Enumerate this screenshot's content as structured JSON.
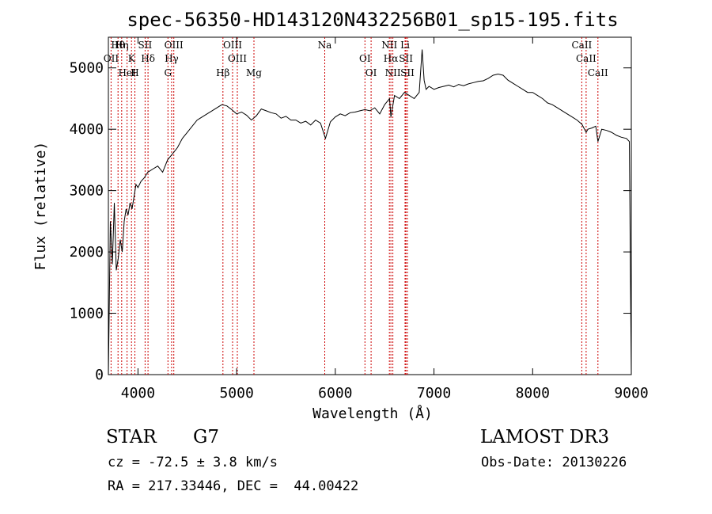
{
  "title": "spec-56350-HD143120N432256B01_sp15-195.fits",
  "footer": {
    "class_label": "STAR",
    "subclass_label": "G7",
    "survey": "LAMOST DR3",
    "cz": "cz = -72.5 ± 3.8 km/s",
    "obs_date": "Obs-Date: 20130226",
    "coords": "RA = 217.33446, DEC =  44.00422"
  },
  "chart_data": {
    "type": "line",
    "title": "spec-56350-HD143120N432256B01_sp15-195.fits",
    "xlabel": "Wavelength (Å)",
    "ylabel": "Flux (relative)",
    "xlim": [
      3700,
      9000
    ],
    "ylim": [
      0,
      5500
    ],
    "xticks": [
      4000,
      5000,
      6000,
      7000,
      8000,
      9000
    ],
    "yticks": [
      0,
      1000,
      2000,
      3000,
      4000,
      5000
    ],
    "grid": false,
    "line_color": "#000000",
    "marker_color": "#cc0000",
    "series": [
      {
        "x": [
          3700,
          3720,
          3740,
          3760,
          3780,
          3800,
          3820,
          3840,
          3860,
          3880,
          3900,
          3920,
          3940,
          3960,
          3980,
          4000,
          4030,
          4060,
          4100,
          4150,
          4200,
          4250,
          4300,
          4350,
          4400,
          4450,
          4500,
          4550,
          4600,
          4650,
          4700,
          4750,
          4800,
          4850,
          4900,
          4950,
          5000,
          5050,
          5100,
          5150,
          5200,
          5250,
          5300,
          5350,
          5400,
          5450,
          5500,
          5550,
          5600,
          5650,
          5700,
          5750,
          5800,
          5850,
          5900,
          5950,
          6000,
          6050,
          6100,
          6150,
          6200,
          6250,
          6300,
          6350,
          6400,
          6450,
          6500,
          6550,
          6563,
          6600,
          6650,
          6700,
          6750,
          6800,
          6850,
          6880,
          6900,
          6920,
          6950,
          7000,
          7050,
          7100,
          7150,
          7200,
          7250,
          7300,
          7350,
          7400,
          7450,
          7500,
          7550,
          7600,
          7650,
          7700,
          7750,
          7800,
          7850,
          7900,
          7950,
          8000,
          8050,
          8100,
          8150,
          8200,
          8250,
          8300,
          8350,
          8400,
          8450,
          8500,
          8542,
          8560,
          8600,
          8640,
          8662,
          8700,
          8750,
          8800,
          8850,
          8900,
          8950,
          8980,
          9000
        ],
        "y": [
          0,
          2500,
          1800,
          2800,
          1700,
          1900,
          2200,
          2000,
          2500,
          2700,
          2600,
          2800,
          2700,
          2900,
          3100,
          3050,
          3150,
          3200,
          3300,
          3350,
          3400,
          3300,
          3500,
          3600,
          3700,
          3850,
          3950,
          4050,
          4150,
          4200,
          4250,
          4300,
          4350,
          4400,
          4380,
          4320,
          4250,
          4280,
          4230,
          4150,
          4220,
          4330,
          4300,
          4270,
          4250,
          4180,
          4210,
          4150,
          4150,
          4100,
          4130,
          4070,
          4150,
          4100,
          3850,
          4120,
          4200,
          4250,
          4220,
          4270,
          4280,
          4300,
          4320,
          4300,
          4350,
          4250,
          4400,
          4500,
          4200,
          4550,
          4500,
          4600,
          4550,
          4500,
          4600,
          5300,
          4800,
          4650,
          4700,
          4650,
          4680,
          4700,
          4720,
          4690,
          4730,
          4710,
          4740,
          4760,
          4780,
          4790,
          4830,
          4880,
          4900,
          4880,
          4800,
          4750,
          4700,
          4650,
          4600,
          4600,
          4550,
          4500,
          4430,
          4400,
          4350,
          4300,
          4250,
          4200,
          4150,
          4080,
          3950,
          4000,
          4020,
          4050,
          3800,
          4000,
          3980,
          3950,
          3900,
          3870,
          3850,
          3800,
          0
        ]
      }
    ],
    "lines": [
      {
        "label": "Hθ",
        "wavelength": 3798
      },
      {
        "label": "OII",
        "wavelength": 3727
      },
      {
        "label": "HeI",
        "wavelength": 3889
      },
      {
        "label": "Hη",
        "wavelength": 3835
      },
      {
        "label": "K",
        "wavelength": 3934
      },
      {
        "label": "H",
        "wavelength": 3969
      },
      {
        "label": "SII",
        "wavelength": 4072
      },
      {
        "label": "Hδ",
        "wavelength": 4102
      },
      {
        "label": "G",
        "wavelength": 4304
      },
      {
        "label": "OIII",
        "wavelength": 4363
      },
      {
        "label": "Hγ",
        "wavelength": 4341
      },
      {
        "label": "Hβ",
        "wavelength": 4861
      },
      {
        "label": "OIII",
        "wavelength": 4959
      },
      {
        "label": "OIII",
        "wavelength": 5007
      },
      {
        "label": "Mg",
        "wavelength": 5175
      },
      {
        "label": "Na",
        "wavelength": 5893
      },
      {
        "label": "OI",
        "wavelength": 6300
      },
      {
        "label": "OI",
        "wavelength": 6363
      },
      {
        "label": "NII",
        "wavelength": 6548
      },
      {
        "label": "Hα",
        "wavelength": 6563
      },
      {
        "label": "NII",
        "wavelength": 6583
      },
      {
        "label": "Li",
        "wavelength": 6707
      },
      {
        "label": "SII",
        "wavelength": 6716
      },
      {
        "label": "SII",
        "wavelength": 6731
      },
      {
        "label": "CaII",
        "wavelength": 8498
      },
      {
        "label": "CaII",
        "wavelength": 8542
      },
      {
        "label": "CaII",
        "wavelength": 8662
      }
    ]
  }
}
